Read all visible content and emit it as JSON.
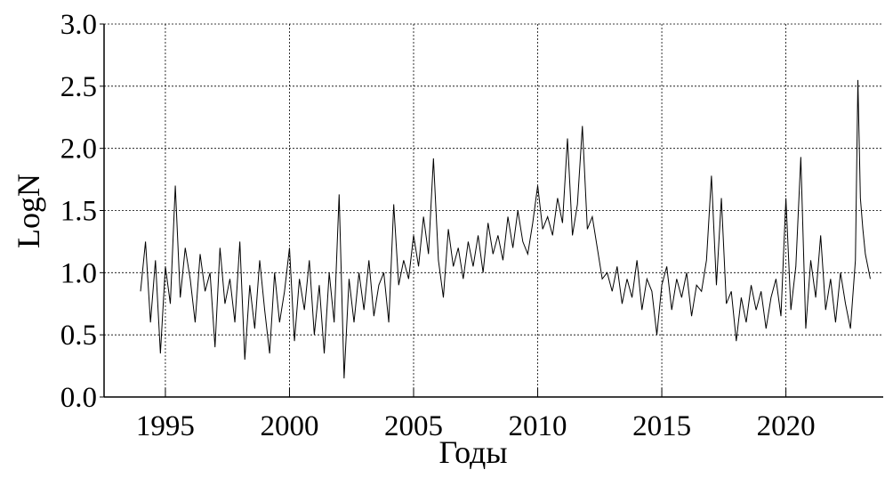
{
  "chart_data": {
    "type": "line",
    "xlabel": "Годы",
    "ylabel": "LogN",
    "x": [
      1994.0,
      1994.2,
      1994.4,
      1994.6,
      1994.8,
      1995.0,
      1995.2,
      1995.4,
      1995.6,
      1995.8,
      1996.0,
      1996.2,
      1996.4,
      1996.6,
      1996.8,
      1997.0,
      1997.2,
      1997.4,
      1997.6,
      1997.8,
      1998.0,
      1998.2,
      1998.4,
      1998.6,
      1998.8,
      1999.0,
      1999.2,
      1999.4,
      1999.6,
      1999.8,
      2000.0,
      2000.2,
      2000.4,
      2000.6,
      2000.8,
      2001.0,
      2001.2,
      2001.4,
      2001.6,
      2001.8,
      2002.0,
      2002.2,
      2002.4,
      2002.6,
      2002.8,
      2003.0,
      2003.2,
      2003.4,
      2003.6,
      2003.8,
      2004.0,
      2004.2,
      2004.4,
      2004.6,
      2004.8,
      2005.0,
      2005.2,
      2005.4,
      2005.6,
      2005.8,
      2006.0,
      2006.2,
      2006.4,
      2006.6,
      2006.8,
      2007.0,
      2007.2,
      2007.4,
      2007.6,
      2007.8,
      2008.0,
      2008.2,
      2008.4,
      2008.6,
      2008.8,
      2009.0,
      2009.2,
      2009.4,
      2009.6,
      2009.8,
      2010.0,
      2010.2,
      2010.4,
      2010.6,
      2010.8,
      2011.0,
      2011.2,
      2011.4,
      2011.6,
      2011.8,
      2012.0,
      2012.2,
      2012.4,
      2012.6,
      2012.8,
      2013.0,
      2013.2,
      2013.4,
      2013.6,
      2013.8,
      2014.0,
      2014.2,
      2014.4,
      2014.6,
      2014.8,
      2015.0,
      2015.2,
      2015.4,
      2015.6,
      2015.8,
      2016.0,
      2016.2,
      2016.4,
      2016.6,
      2016.8,
      2017.0,
      2017.2,
      2017.4,
      2017.6,
      2017.8,
      2018.0,
      2018.2,
      2018.4,
      2018.6,
      2018.8,
      2019.0,
      2019.2,
      2019.4,
      2019.6,
      2019.8,
      2020.0,
      2020.2,
      2020.4,
      2020.6,
      2020.8,
      2021.0,
      2021.2,
      2021.4,
      2021.6,
      2021.8,
      2022.0,
      2022.2,
      2022.4,
      2022.6,
      2022.8,
      2022.9,
      2023.0,
      2023.1,
      2023.2,
      2023.4
    ],
    "series": [
      {
        "color": "#000000",
        "values": [
          0.85,
          1.25,
          0.6,
          1.1,
          0.35,
          1.05,
          0.75,
          1.7,
          0.8,
          1.2,
          0.95,
          0.6,
          1.15,
          0.85,
          1.0,
          0.4,
          1.2,
          0.75,
          0.95,
          0.6,
          1.25,
          0.3,
          0.9,
          0.55,
          1.1,
          0.7,
          0.35,
          1.0,
          0.6,
          0.85,
          1.2,
          0.45,
          0.95,
          0.7,
          1.1,
          0.5,
          0.9,
          0.35,
          1.0,
          0.6,
          1.63,
          0.15,
          0.95,
          0.6,
          1.0,
          0.7,
          1.1,
          0.65,
          0.9,
          1.0,
          0.6,
          1.55,
          0.9,
          1.1,
          0.95,
          1.3,
          1.05,
          1.45,
          1.15,
          1.92,
          1.1,
          0.8,
          1.35,
          1.05,
          1.2,
          0.95,
          1.25,
          1.05,
          1.3,
          1.0,
          1.4,
          1.15,
          1.3,
          1.1,
          1.45,
          1.2,
          1.5,
          1.25,
          1.15,
          1.4,
          1.7,
          1.35,
          1.45,
          1.3,
          1.6,
          1.4,
          2.08,
          1.3,
          1.55,
          2.18,
          1.35,
          1.45,
          1.2,
          0.95,
          1.0,
          0.85,
          1.05,
          0.75,
          0.95,
          0.8,
          1.1,
          0.7,
          0.95,
          0.85,
          0.5,
          0.9,
          1.05,
          0.7,
          0.95,
          0.8,
          1.0,
          0.65,
          0.9,
          0.85,
          1.1,
          1.78,
          0.9,
          1.6,
          0.75,
          0.85,
          0.45,
          0.8,
          0.6,
          0.9,
          0.7,
          0.85,
          0.55,
          0.8,
          0.95,
          0.65,
          1.6,
          0.7,
          1.05,
          1.93,
          0.55,
          1.1,
          0.8,
          1.3,
          0.7,
          0.95,
          0.6,
          1.0,
          0.75,
          0.55,
          1.1,
          2.55,
          1.6,
          1.35,
          1.15,
          0.95
        ]
      }
    ],
    "xlim": [
      1992.53,
      2023.92
    ],
    "xticks": [
      1995,
      2000,
      2005,
      2010,
      2015,
      2020
    ],
    "ylim": [
      0,
      3
    ],
    "yticks": [
      {
        "value": 0,
        "label": "0.0"
      },
      0.5,
      {
        "value": 1,
        "label": "1.0"
      },
      1.5,
      {
        "value": 2,
        "label": "2.0"
      },
      2.5,
      {
        "value": 3,
        "label": "3.0"
      }
    ],
    "grid": true
  }
}
